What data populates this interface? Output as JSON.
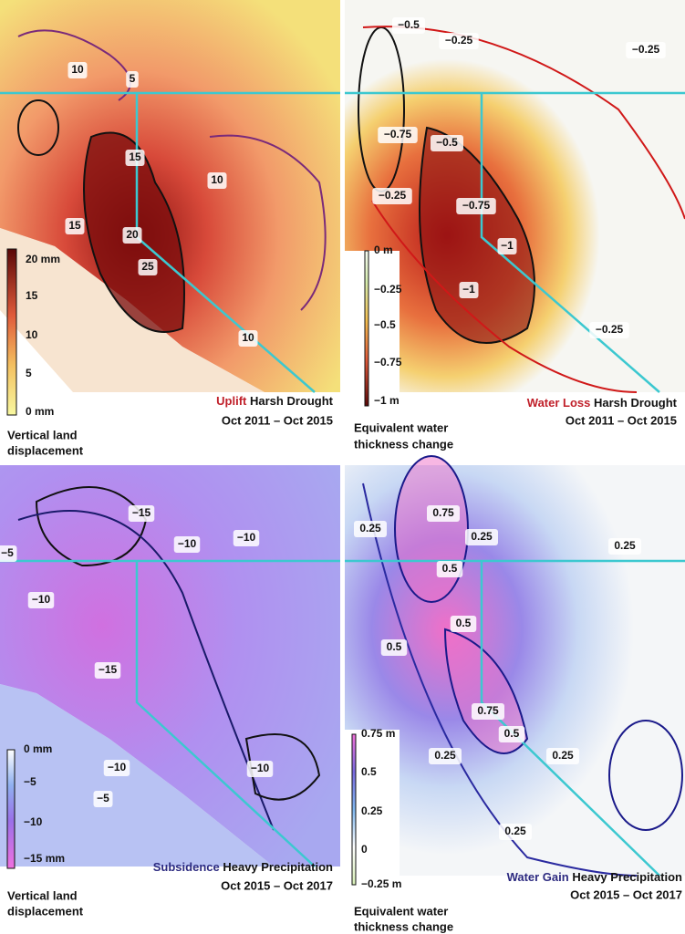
{
  "panels": [
    {
      "highlight": "Uplift",
      "title": "Harsh Drought",
      "period": "Oct 2011 – Oct 2015",
      "legend": [
        "Vertical land",
        "displacement"
      ],
      "colorbar": [
        "20 mm",
        "15",
        "10",
        "5",
        "0 mm"
      ],
      "contours": [
        "10",
        "5",
        "15",
        "10",
        "15",
        "20",
        "25",
        "10"
      ]
    },
    {
      "highlight": "Water Loss",
      "title": "Harsh Drought",
      "period": "Oct 2011 – Oct 2015",
      "legend": [
        "Equivalent water",
        "thickness change"
      ],
      "colorbar": [
        "0 m",
        "−0.25",
        "−0.5",
        "−0.75",
        "−1 m"
      ],
      "contours": [
        "−0.5",
        "−0.25",
        "−0.25",
        "−0.75",
        "−0.5",
        "−0.25",
        "−0.75",
        "−1",
        "−1",
        "−0.25"
      ]
    },
    {
      "highlight": "Subsidence",
      "title": "Heavy Precipitation",
      "period": "Oct 2015 – Oct 2017",
      "legend": [
        "Vertical land",
        "displacement"
      ],
      "colorbar": [
        "0 mm",
        "−5",
        "−10",
        "−15 mm"
      ],
      "contours": [
        "−15",
        "−5",
        "−10",
        "−10",
        "−10",
        "−15",
        "−10",
        "−10",
        "−5"
      ]
    },
    {
      "highlight": "Water Gain",
      "title": "Heavy Precipitation",
      "period": "Oct 2015 – Oct 2017",
      "legend": [
        "Equivalent water",
        "thickness change"
      ],
      "colorbar": [
        "0.75 m",
        "0.5",
        "0.25",
        "0",
        "−0.25 m"
      ],
      "contours": [
        "0.75",
        "0.25",
        "0.25",
        "0.25",
        "0.5",
        "0.5",
        "0.5",
        "0.75",
        "0.5",
        "0.25",
        "0.25",
        "0.25"
      ]
    }
  ]
}
